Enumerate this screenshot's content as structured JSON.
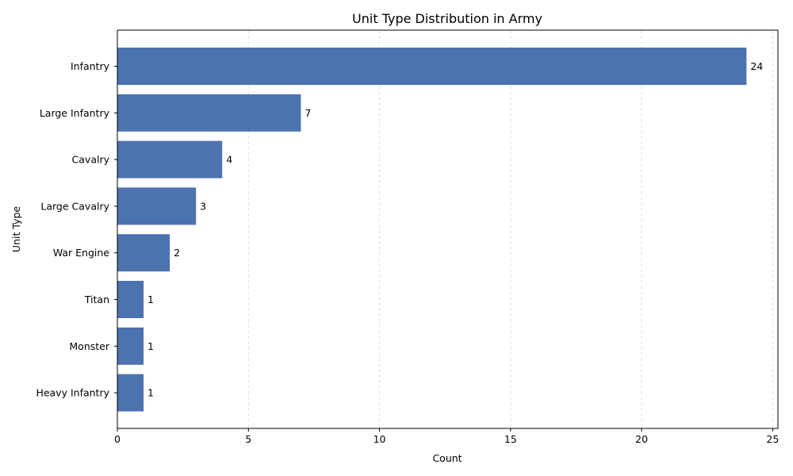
{
  "chart_data": {
    "type": "bar",
    "orientation": "horizontal",
    "title": "Unit Type Distribution in Army",
    "xlabel": "Count",
    "ylabel": "Unit Type",
    "categories": [
      "Infantry",
      "Large Infantry",
      "Cavalry",
      "Large Cavalry",
      "War Engine",
      "Titan",
      "Monster",
      "Heavy Infantry"
    ],
    "values": [
      24,
      7,
      4,
      3,
      2,
      1,
      1,
      1
    ],
    "data_labels": [
      "24",
      "7",
      "4",
      "3",
      "2",
      "1",
      "1",
      "1"
    ],
    "xticks": [
      0,
      5,
      10,
      15,
      20,
      25
    ],
    "xtick_labels": [
      "0",
      "5",
      "10",
      "15",
      "20",
      "25"
    ],
    "xlim": [
      0,
      25.2
    ],
    "grid": "x-dashed",
    "colors": {
      "bar": "#4c72b0",
      "grid": "#e0e0e0",
      "axis": "#000000"
    }
  }
}
